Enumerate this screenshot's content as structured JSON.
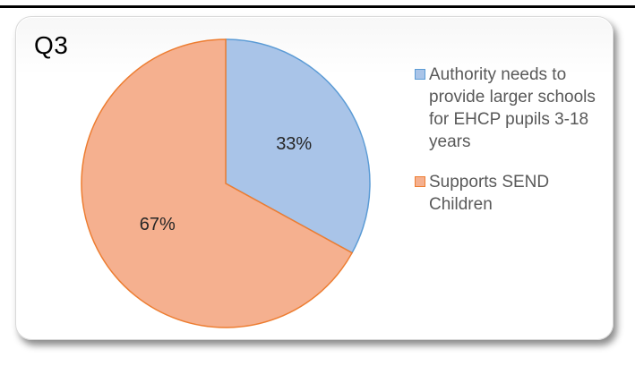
{
  "chart_data": {
    "type": "pie",
    "title": "Q3",
    "categories": [
      "Authority needs to provide larger schools for EHCP pupils 3-18 years",
      "Supports SEND Children"
    ],
    "values": [
      33,
      67
    ],
    "data_labels": [
      "33%",
      "67%"
    ],
    "colors": [
      "#a9c4e8",
      "#f5b08f"
    ],
    "edge_colors": [
      "#5b9bd5",
      "#ed7d31"
    ],
    "legend_position": "right",
    "start_angle": "12 o'clock",
    "direction": "clockwise"
  }
}
